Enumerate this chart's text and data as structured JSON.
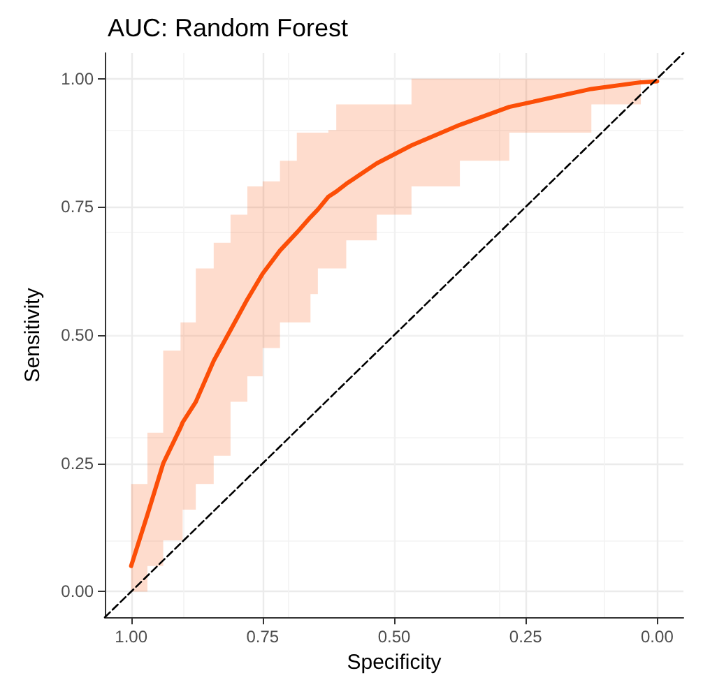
{
  "chart_data": {
    "type": "line",
    "title": "AUC: Random Forest",
    "xlabel": "Specificity",
    "ylabel": "Sensitivity",
    "xlim": [
      1.05,
      -0.05
    ],
    "ylim": [
      -0.05,
      1.05
    ],
    "xticks": [
      {
        "value": 1,
        "label": "1.00"
      },
      {
        "value": 0.75,
        "label": "0.75"
      },
      {
        "value": 0.5,
        "label": "0.50"
      },
      {
        "value": 0.25,
        "label": "0.25"
      },
      {
        "value": 0,
        "label": "0.00"
      }
    ],
    "yticks": [
      {
        "value": 0,
        "label": "0.00"
      },
      {
        "value": 0.25,
        "label": "0.25"
      },
      {
        "value": 0.5,
        "label": "0.50"
      },
      {
        "value": 0.75,
        "label": "0.75"
      },
      {
        "value": 1,
        "label": "1.00"
      }
    ],
    "grid": true,
    "marker": "none",
    "series": [
      {
        "color": "#fc4e07",
        "line_style": "solid",
        "x": [
          1.0,
          0.969,
          0.939,
          0.906,
          0.902,
          0.877,
          0.843,
          0.811,
          0.779,
          0.75,
          0.717,
          0.685,
          0.659,
          0.645,
          0.625,
          0.61,
          0.591,
          0.533,
          0.467,
          0.375,
          0.281,
          0.125,
          0.031,
          0.0
        ],
        "values": [
          0.05,
          0.15,
          0.25,
          0.32,
          0.33,
          0.37,
          0.45,
          0.51,
          0.57,
          0.62,
          0.665,
          0.7,
          0.73,
          0.745,
          0.77,
          0.78,
          0.795,
          0.835,
          0.87,
          0.91,
          0.945,
          0.98,
          0.993,
          0.995
        ],
        "lower": [
          0,
          0.05,
          0.1,
          0.1,
          0.16,
          0.21,
          0.265,
          0.37,
          0.42,
          0.475,
          0.525,
          0.525,
          0.58,
          0.63,
          0.63,
          0.63,
          0.685,
          0.735,
          0.79,
          0.84,
          0.895,
          0.95,
          1.0,
          1.0
        ],
        "upper": [
          0.21,
          0.31,
          0.47,
          0.525,
          0.525,
          0.63,
          0.68,
          0.735,
          0.79,
          0.8,
          0.84,
          0.895,
          0.895,
          0.895,
          0.9,
          0.95,
          0.95,
          0.95,
          1.0,
          1.0,
          1.0,
          1.0,
          1.0,
          1.0
        ]
      },
      {
        "color": "#000000",
        "line_style": "dashed",
        "x": [
          1.05,
          -0.05
        ],
        "values": [
          -0.05,
          1.05
        ]
      }
    ]
  }
}
